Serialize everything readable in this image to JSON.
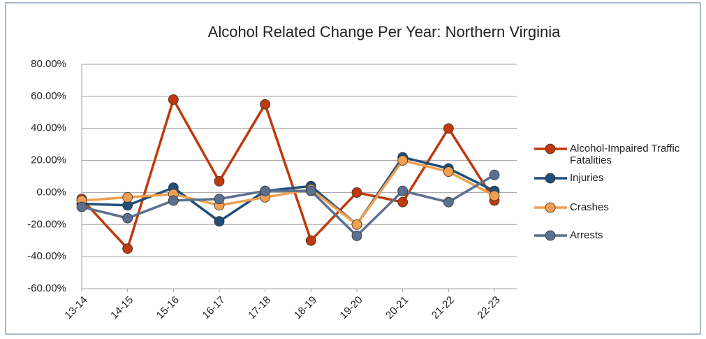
{
  "chart_data": {
    "type": "line",
    "title": "Alcohol Related Change Per Year: Northern Virginia",
    "categories": [
      "13-14",
      "14-15",
      "15-16",
      "16-17",
      "17-18",
      "18-19",
      "19-20",
      "20-21",
      "21-22",
      "22-23"
    ],
    "series": [
      {
        "name": "Alcohol-Impaired Traffic Fatalities",
        "color": "#c0390b",
        "values": [
          -4,
          -35,
          58,
          7,
          55,
          -30,
          0,
          -6,
          40,
          -5
        ]
      },
      {
        "name": "Injuries",
        "color": "#1f4e79",
        "values": [
          -7,
          -8,
          3,
          -18,
          1,
          4,
          -20,
          22,
          15,
          1
        ]
      },
      {
        "name": "Crashes",
        "color": "#f0a050",
        "values": [
          -5,
          -3,
          -1,
          -8,
          -3,
          2,
          -20,
          20,
          13,
          -2
        ]
      },
      {
        "name": "Arrests",
        "color": "#5b6f8f",
        "values": [
          -9,
          -16,
          -5,
          -4,
          1,
          1,
          -27,
          1,
          -6,
          11
        ]
      }
    ],
    "ylim": [
      -60,
      80
    ],
    "yticks": [
      {
        "value": -60,
        "label": "-60.00%"
      },
      {
        "value": -40,
        "label": "-40.00%"
      },
      {
        "value": -20,
        "label": "-20.00%"
      },
      {
        "value": 0,
        "label": "0.00%"
      },
      {
        "value": 20,
        "label": "20.00%"
      },
      {
        "value": 40,
        "label": "40.00%"
      },
      {
        "value": 60,
        "label": "60.00%"
      },
      {
        "value": 80,
        "label": "80.00%"
      }
    ],
    "grid": true
  }
}
